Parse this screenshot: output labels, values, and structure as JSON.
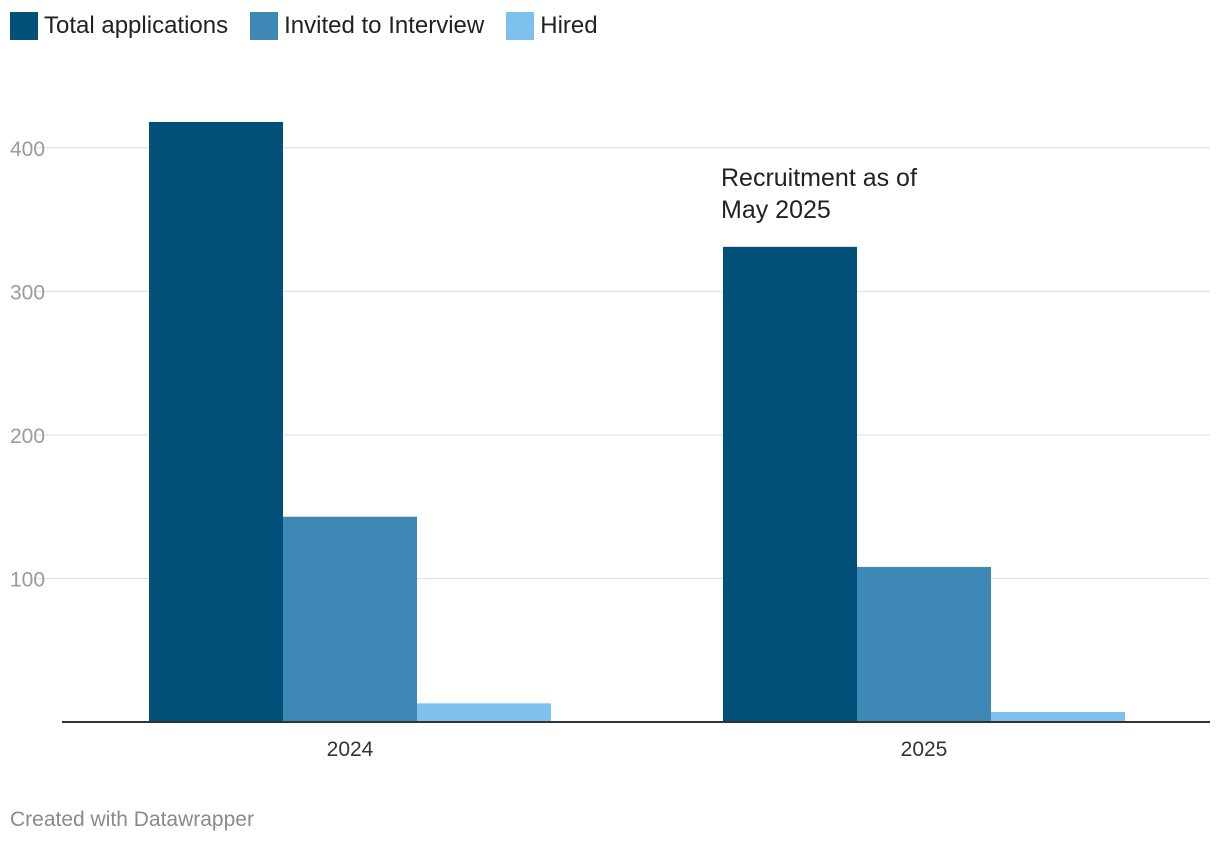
{
  "chart_data": {
    "type": "bar",
    "categories": [
      "2024",
      "2025"
    ],
    "series": [
      {
        "name": "Total applications",
        "values": [
          418,
          331
        ],
        "color": "#00507a"
      },
      {
        "name": "Invited to Interview",
        "values": [
          143,
          108
        ],
        "color": "#3d88b4"
      },
      {
        "name": "Hired",
        "values": [
          13,
          7
        ],
        "color": "#7fc1ee"
      }
    ],
    "yticks": [
      100,
      200,
      300,
      400
    ],
    "ylim": [
      0,
      440
    ],
    "grid": true,
    "legend_position": "top-left",
    "annotation": {
      "line1": "Recruitment as of",
      "line2": "May 2025",
      "category": "2025"
    }
  },
  "footer": {
    "credit": "Created with Datawrapper"
  }
}
